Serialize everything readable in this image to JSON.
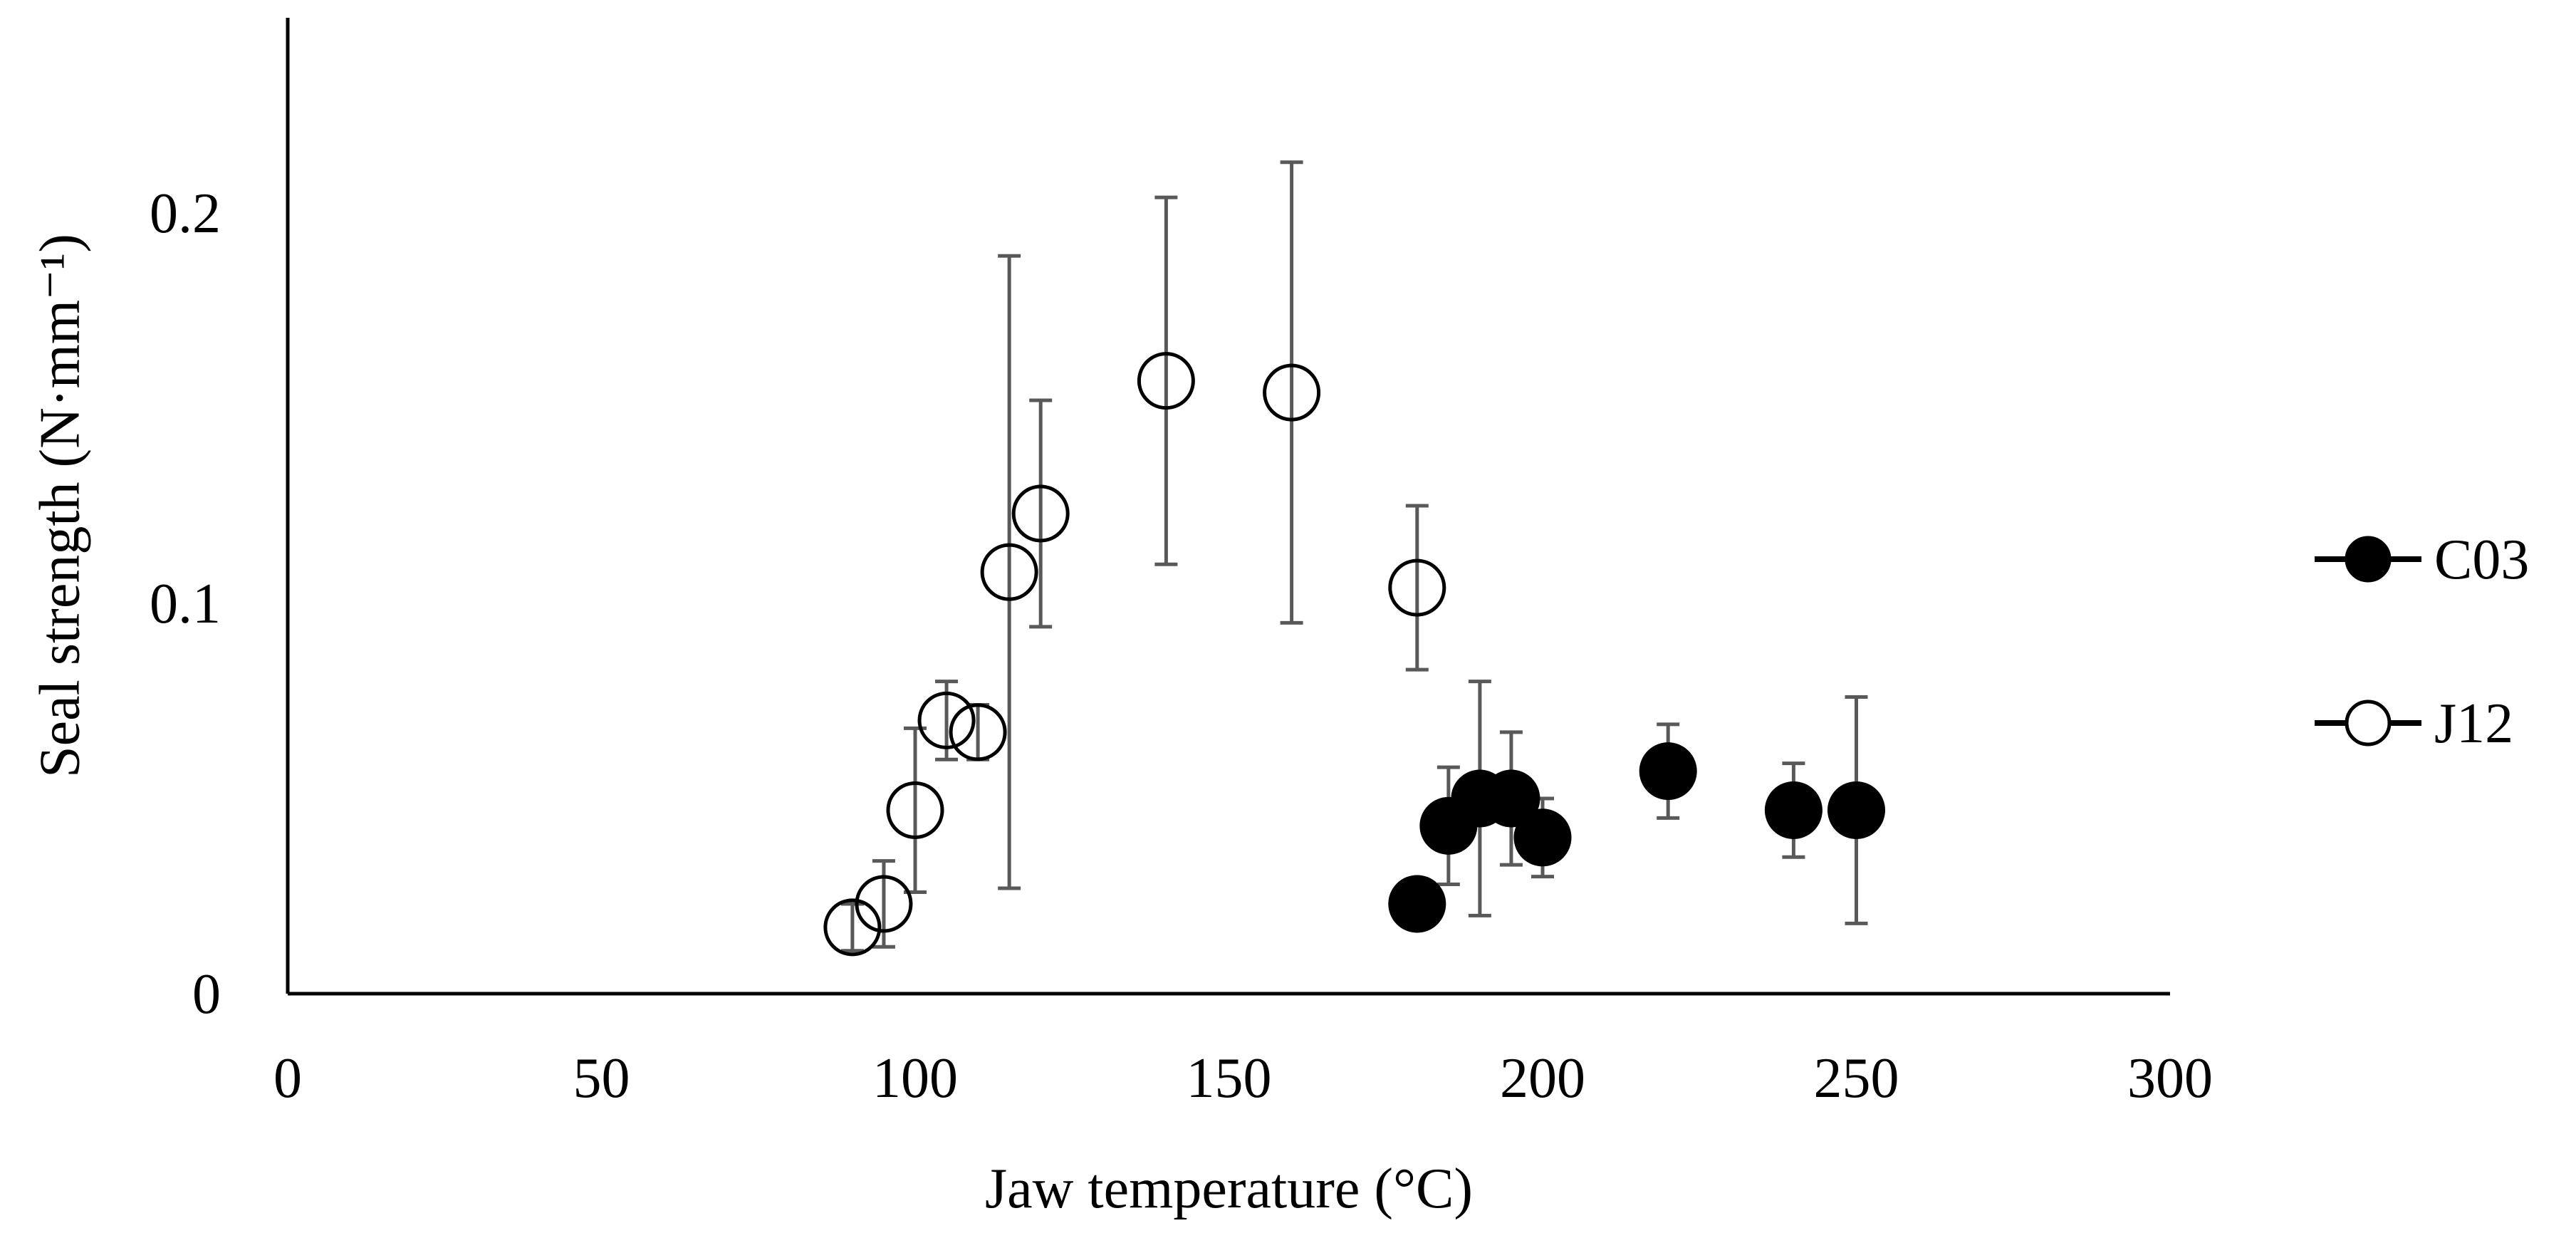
{
  "chart_data": {
    "type": "scatter",
    "title": "",
    "xlabel": "Jaw temperature (°C)",
    "ylabel": "Seal strength (N·mm⁻¹)",
    "xlim": [
      0,
      300
    ],
    "ylim": [
      0,
      0.25
    ],
    "xticks": [
      0,
      50,
      100,
      150,
      200,
      250,
      300
    ],
    "xtick_labels": [
      "0",
      "50",
      "100",
      "150",
      "200",
      "250",
      "300"
    ],
    "yticks": [
      0,
      0.1,
      0.2
    ],
    "ytick_labels": [
      "0",
      "0.1",
      "0.2"
    ],
    "grid": false,
    "legend_position": "right",
    "colors": {
      "error_bar": "#595959",
      "marker": "#000000",
      "axis": "#000000"
    },
    "series": [
      {
        "name": "C03",
        "marker": "filled-circle",
        "points": [
          {
            "x": 180,
            "y": 0.023
          },
          {
            "x": 185,
            "y": 0.043,
            "err": 0.015
          },
          {
            "x": 190,
            "y": 0.05,
            "err": 0.03
          },
          {
            "x": 195,
            "y": 0.05,
            "err": 0.017
          },
          {
            "x": 200,
            "y": 0.04,
            "err": 0.01
          },
          {
            "x": 220,
            "y": 0.057,
            "err": 0.012
          },
          {
            "x": 240,
            "y": 0.047,
            "err": 0.012
          },
          {
            "x": 250,
            "y": 0.047,
            "err": 0.029
          }
        ]
      },
      {
        "name": "J12",
        "marker": "open-circle",
        "points": [
          {
            "x": 90,
            "y": 0.017,
            "err": 0.006
          },
          {
            "x": 95,
            "y": 0.023,
            "err": 0.011
          },
          {
            "x": 100,
            "y": 0.047,
            "err": 0.021
          },
          {
            "x": 105,
            "y": 0.07,
            "err": 0.01
          },
          {
            "x": 110,
            "y": 0.067,
            "err": 0.007
          },
          {
            "x": 115,
            "y": 0.108,
            "err": 0.081
          },
          {
            "x": 120,
            "y": 0.123,
            "err": 0.029
          },
          {
            "x": 140,
            "y": 0.157,
            "err": 0.047
          },
          {
            "x": 160,
            "y": 0.154,
            "err": 0.059
          },
          {
            "x": 180,
            "y": 0.104,
            "err": 0.021
          }
        ]
      }
    ]
  }
}
